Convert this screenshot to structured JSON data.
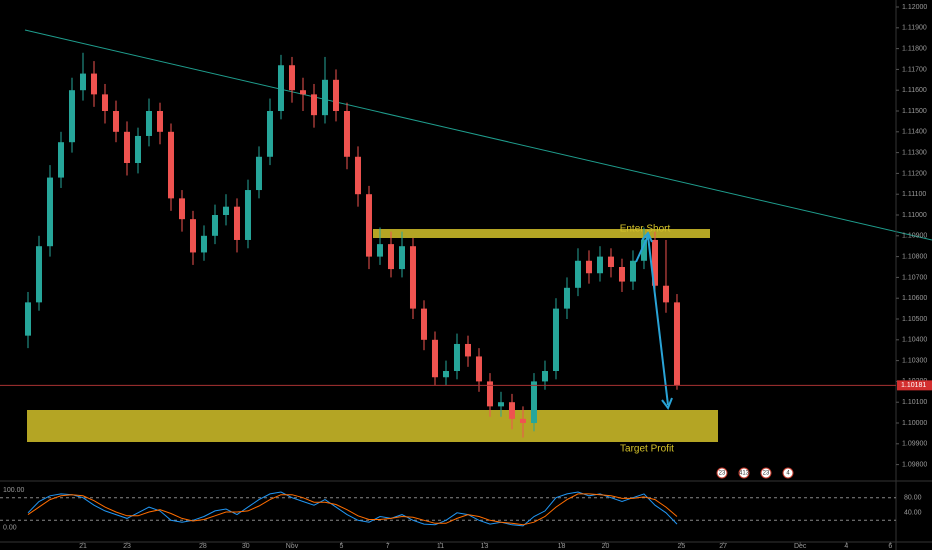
{
  "chart_data": {
    "type": "candlestick",
    "ylim": [
      1.097356,
      1.120337
    ],
    "yticks": [
      {
        "value": 1.098,
        "label": "1.09800"
      },
      {
        "value": 1.099,
        "label": "1.09900"
      },
      {
        "value": 1.1,
        "label": "1.10000"
      },
      {
        "value": 1.101,
        "label": "1.10100"
      },
      {
        "value": 1.102,
        "label": "1.10200"
      },
      {
        "value": 1.103,
        "label": "1.10300"
      },
      {
        "value": 1.104,
        "label": "1.10400"
      },
      {
        "value": 1.105,
        "label": "1.10500"
      },
      {
        "value": 1.106,
        "label": "1.10600"
      },
      {
        "value": 1.107,
        "label": "1.10700"
      },
      {
        "value": 1.108,
        "label": "1.10800"
      },
      {
        "value": 1.109,
        "label": "1.10900"
      },
      {
        "value": 1.11,
        "label": "1.11000"
      },
      {
        "value": 1.111,
        "label": "1.11100"
      },
      {
        "value": 1.112,
        "label": "1.11200"
      },
      {
        "value": 1.113,
        "label": "1.11300"
      },
      {
        "value": 1.114,
        "label": "1.11400"
      },
      {
        "value": 1.115,
        "label": "1.11500"
      },
      {
        "value": 1.116,
        "label": "1.11600"
      },
      {
        "value": 1.117,
        "label": "1.11700"
      },
      {
        "value": 1.118,
        "label": "1.11800"
      },
      {
        "value": 1.119,
        "label": "1.11900"
      },
      {
        "value": 1.12,
        "label": "1.12000"
      }
    ],
    "xlim": [
      -2.545,
      78.82
    ],
    "xticks": [
      {
        "value": 5,
        "label": "21"
      },
      {
        "value": 9,
        "label": "23"
      },
      {
        "value": 15.9,
        "label": "28"
      },
      {
        "value": 19.8,
        "label": "30"
      },
      {
        "value": 24,
        "label": "Nov"
      },
      {
        "value": 28.5,
        "label": "5"
      },
      {
        "value": 32.7,
        "label": "7"
      },
      {
        "value": 37.5,
        "label": "11"
      },
      {
        "value": 41.5,
        "label": "13"
      },
      {
        "value": 48.5,
        "label": "18"
      },
      {
        "value": 52.5,
        "label": "20"
      },
      {
        "value": 59.4,
        "label": "25"
      },
      {
        "value": 63.2,
        "label": "27"
      },
      {
        "value": 70.2,
        "label": "Dec"
      },
      {
        "value": 74.4,
        "label": "4"
      },
      {
        "value": 78.4,
        "label": "6"
      }
    ],
    "up_color": "#26a69a",
    "down_color": "#ef5350",
    "open": [
      1.1042,
      1.1058,
      1.1085,
      1.1118,
      1.1135,
      1.116,
      1.1168,
      1.1158,
      1.115,
      1.114,
      1.1125,
      1.1138,
      1.115,
      1.114,
      1.1108,
      1.1098,
      1.1082,
      1.109,
      1.11,
      1.1104,
      1.1088,
      1.1112,
      1.1128,
      1.115,
      1.1172,
      1.116,
      1.1158,
      1.1148,
      1.1165,
      1.115,
      1.1128,
      1.111,
      1.108,
      1.1086,
      1.1074,
      1.1085,
      1.1055,
      1.104,
      1.1022,
      1.1025,
      1.1038,
      1.1032,
      1.102,
      1.1008,
      1.101,
      1.1002,
      1.1,
      1.102,
      1.1025,
      1.1055,
      1.1065,
      1.1078,
      1.1072,
      1.108,
      1.1075,
      1.1068,
      1.1078,
      1.1088,
      1.1066,
      1.1058
    ],
    "high": [
      1.1063,
      1.109,
      1.1124,
      1.114,
      1.1166,
      1.1178,
      1.1174,
      1.1163,
      1.1155,
      1.1145,
      1.1142,
      1.1156,
      1.1154,
      1.1144,
      1.1112,
      1.1102,
      1.1095,
      1.1105,
      1.111,
      1.1108,
      1.1117,
      1.1133,
      1.1156,
      1.1177,
      1.1176,
      1.1166,
      1.1163,
      1.1176,
      1.117,
      1.1154,
      1.1133,
      1.1114,
      1.1094,
      1.1092,
      1.1092,
      1.1089,
      1.1059,
      1.1044,
      1.103,
      1.1043,
      1.1042,
      1.1036,
      1.1024,
      1.1015,
      1.1014,
      1.1008,
      1.1024,
      1.103,
      1.106,
      1.107,
      1.1084,
      1.1083,
      1.1085,
      1.1084,
      1.1079,
      1.1083,
      1.1094,
      1.1092,
      1.1088,
      1.1062
    ],
    "low": [
      1.1036,
      1.1054,
      1.108,
      1.1113,
      1.113,
      1.1155,
      1.1152,
      1.1144,
      1.1135,
      1.1119,
      1.112,
      1.1133,
      1.1134,
      1.1102,
      1.1092,
      1.1076,
      1.1078,
      1.1086,
      1.1095,
      1.1082,
      1.1084,
      1.1108,
      1.1124,
      1.1146,
      1.1154,
      1.115,
      1.1142,
      1.1144,
      1.1145,
      1.1122,
      1.1104,
      1.1074,
      1.1076,
      1.107,
      1.107,
      1.105,
      1.1035,
      1.1018,
      1.1018,
      1.1021,
      1.1027,
      1.1015,
      1.1003,
      1.1003,
      1.0997,
      1.0993,
      1.0996,
      1.1016,
      1.1021,
      1.105,
      1.1061,
      1.1067,
      1.1068,
      1.107,
      1.1063,
      1.1064,
      1.1074,
      1.1061,
      1.1053,
      1.1016
    ],
    "close": [
      1.1058,
      1.1085,
      1.1118,
      1.1135,
      1.116,
      1.1168,
      1.1158,
      1.115,
      1.114,
      1.1125,
      1.1138,
      1.115,
      1.114,
      1.1108,
      1.1098,
      1.1082,
      1.109,
      1.11,
      1.1104,
      1.1088,
      1.1112,
      1.1128,
      1.115,
      1.1172,
      1.116,
      1.1158,
      1.1148,
      1.1165,
      1.115,
      1.1128,
      1.111,
      1.108,
      1.1086,
      1.1074,
      1.1085,
      1.1055,
      1.104,
      1.1022,
      1.1025,
      1.1038,
      1.1032,
      1.102,
      1.1008,
      1.101,
      1.1002,
      1.1,
      1.102,
      1.1025,
      1.1055,
      1.1065,
      1.1078,
      1.1072,
      1.108,
      1.1075,
      1.1068,
      1.1078,
      1.1088,
      1.1066,
      1.1058,
      1.10181
    ],
    "last_price": 1.10181,
    "annotations": [
      "Enter Short",
      "Target Profit"
    ],
    "event_badges": [
      "23",
      "413",
      "23",
      "4"
    ],
    "oscillator": {
      "ylim": [
        -35,
        119
      ],
      "yticks": [
        {
          "value": 100,
          "label": "100.00"
        },
        {
          "value": 0,
          "label": "0.00"
        }
      ],
      "y2ticks": [
        {
          "value": 80,
          "label": "80.00"
        },
        {
          "value": 40,
          "label": "40.00"
        }
      ],
      "levels": [
        80,
        20
      ],
      "series": [
        {
          "color": "#2196f3",
          "values": [
            40,
            70,
            85,
            90,
            88,
            80,
            60,
            45,
            35,
            25,
            40,
            55,
            45,
            20,
            15,
            20,
            30,
            45,
            50,
            35,
            55,
            75,
            90,
            95,
            80,
            70,
            60,
            75,
            55,
            35,
            20,
            15,
            30,
            25,
            35,
            20,
            10,
            8,
            20,
            40,
            35,
            20,
            10,
            15,
            8,
            5,
            30,
            45,
            80,
            90,
            95,
            85,
            90,
            80,
            70,
            80,
            90,
            60,
            40,
            10
          ]
        },
        {
          "color": "#ff6d00",
          "values": [
            35,
            55,
            75,
            85,
            88,
            85,
            72,
            55,
            42,
            32,
            32,
            42,
            48,
            38,
            25,
            18,
            22,
            32,
            42,
            42,
            45,
            58,
            75,
            88,
            88,
            80,
            68,
            68,
            62,
            48,
            32,
            22,
            22,
            25,
            30,
            28,
            20,
            12,
            12,
            25,
            35,
            30,
            20,
            15,
            12,
            8,
            15,
            30,
            55,
            75,
            90,
            90,
            88,
            85,
            78,
            78,
            82,
            75,
            55,
            30
          ]
        }
      ]
    }
  }
}
